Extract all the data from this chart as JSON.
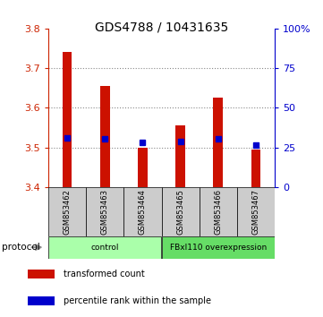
{
  "title": "GDS4788 / 10431635",
  "samples": [
    "GSM853462",
    "GSM853463",
    "GSM853464",
    "GSM853465",
    "GSM853466",
    "GSM853467"
  ],
  "bar_values": [
    3.74,
    3.655,
    3.5,
    3.555,
    3.625,
    3.495
  ],
  "bar_base": 3.4,
  "percentile_values": [
    3.523,
    3.521,
    3.512,
    3.516,
    3.522,
    3.506
  ],
  "groups": [
    {
      "label": "control",
      "indices": [
        0,
        1,
        2
      ],
      "color": "#aaffaa"
    },
    {
      "label": "FBxl110 overexpression",
      "indices": [
        3,
        4,
        5
      ],
      "color": "#66dd66"
    }
  ],
  "ylim": [
    3.4,
    3.8
  ],
  "y_ticks": [
    3.4,
    3.5,
    3.6,
    3.7,
    3.8
  ],
  "right_ylim": [
    0,
    100
  ],
  "right_yticks": [
    0,
    25,
    50,
    75,
    100
  ],
  "right_yticklabels": [
    "0",
    "25",
    "50",
    "75",
    "100%"
  ],
  "bar_color": "#cc1100",
  "percentile_color": "#0000cc",
  "grid_color": "#888888",
  "left_tick_color": "#cc2200",
  "right_tick_color": "#0000cc",
  "bar_width": 0.25,
  "legend_items": [
    {
      "label": "transformed count",
      "color": "#cc1100"
    },
    {
      "label": "percentile rank within the sample",
      "color": "#0000cc"
    }
  ]
}
